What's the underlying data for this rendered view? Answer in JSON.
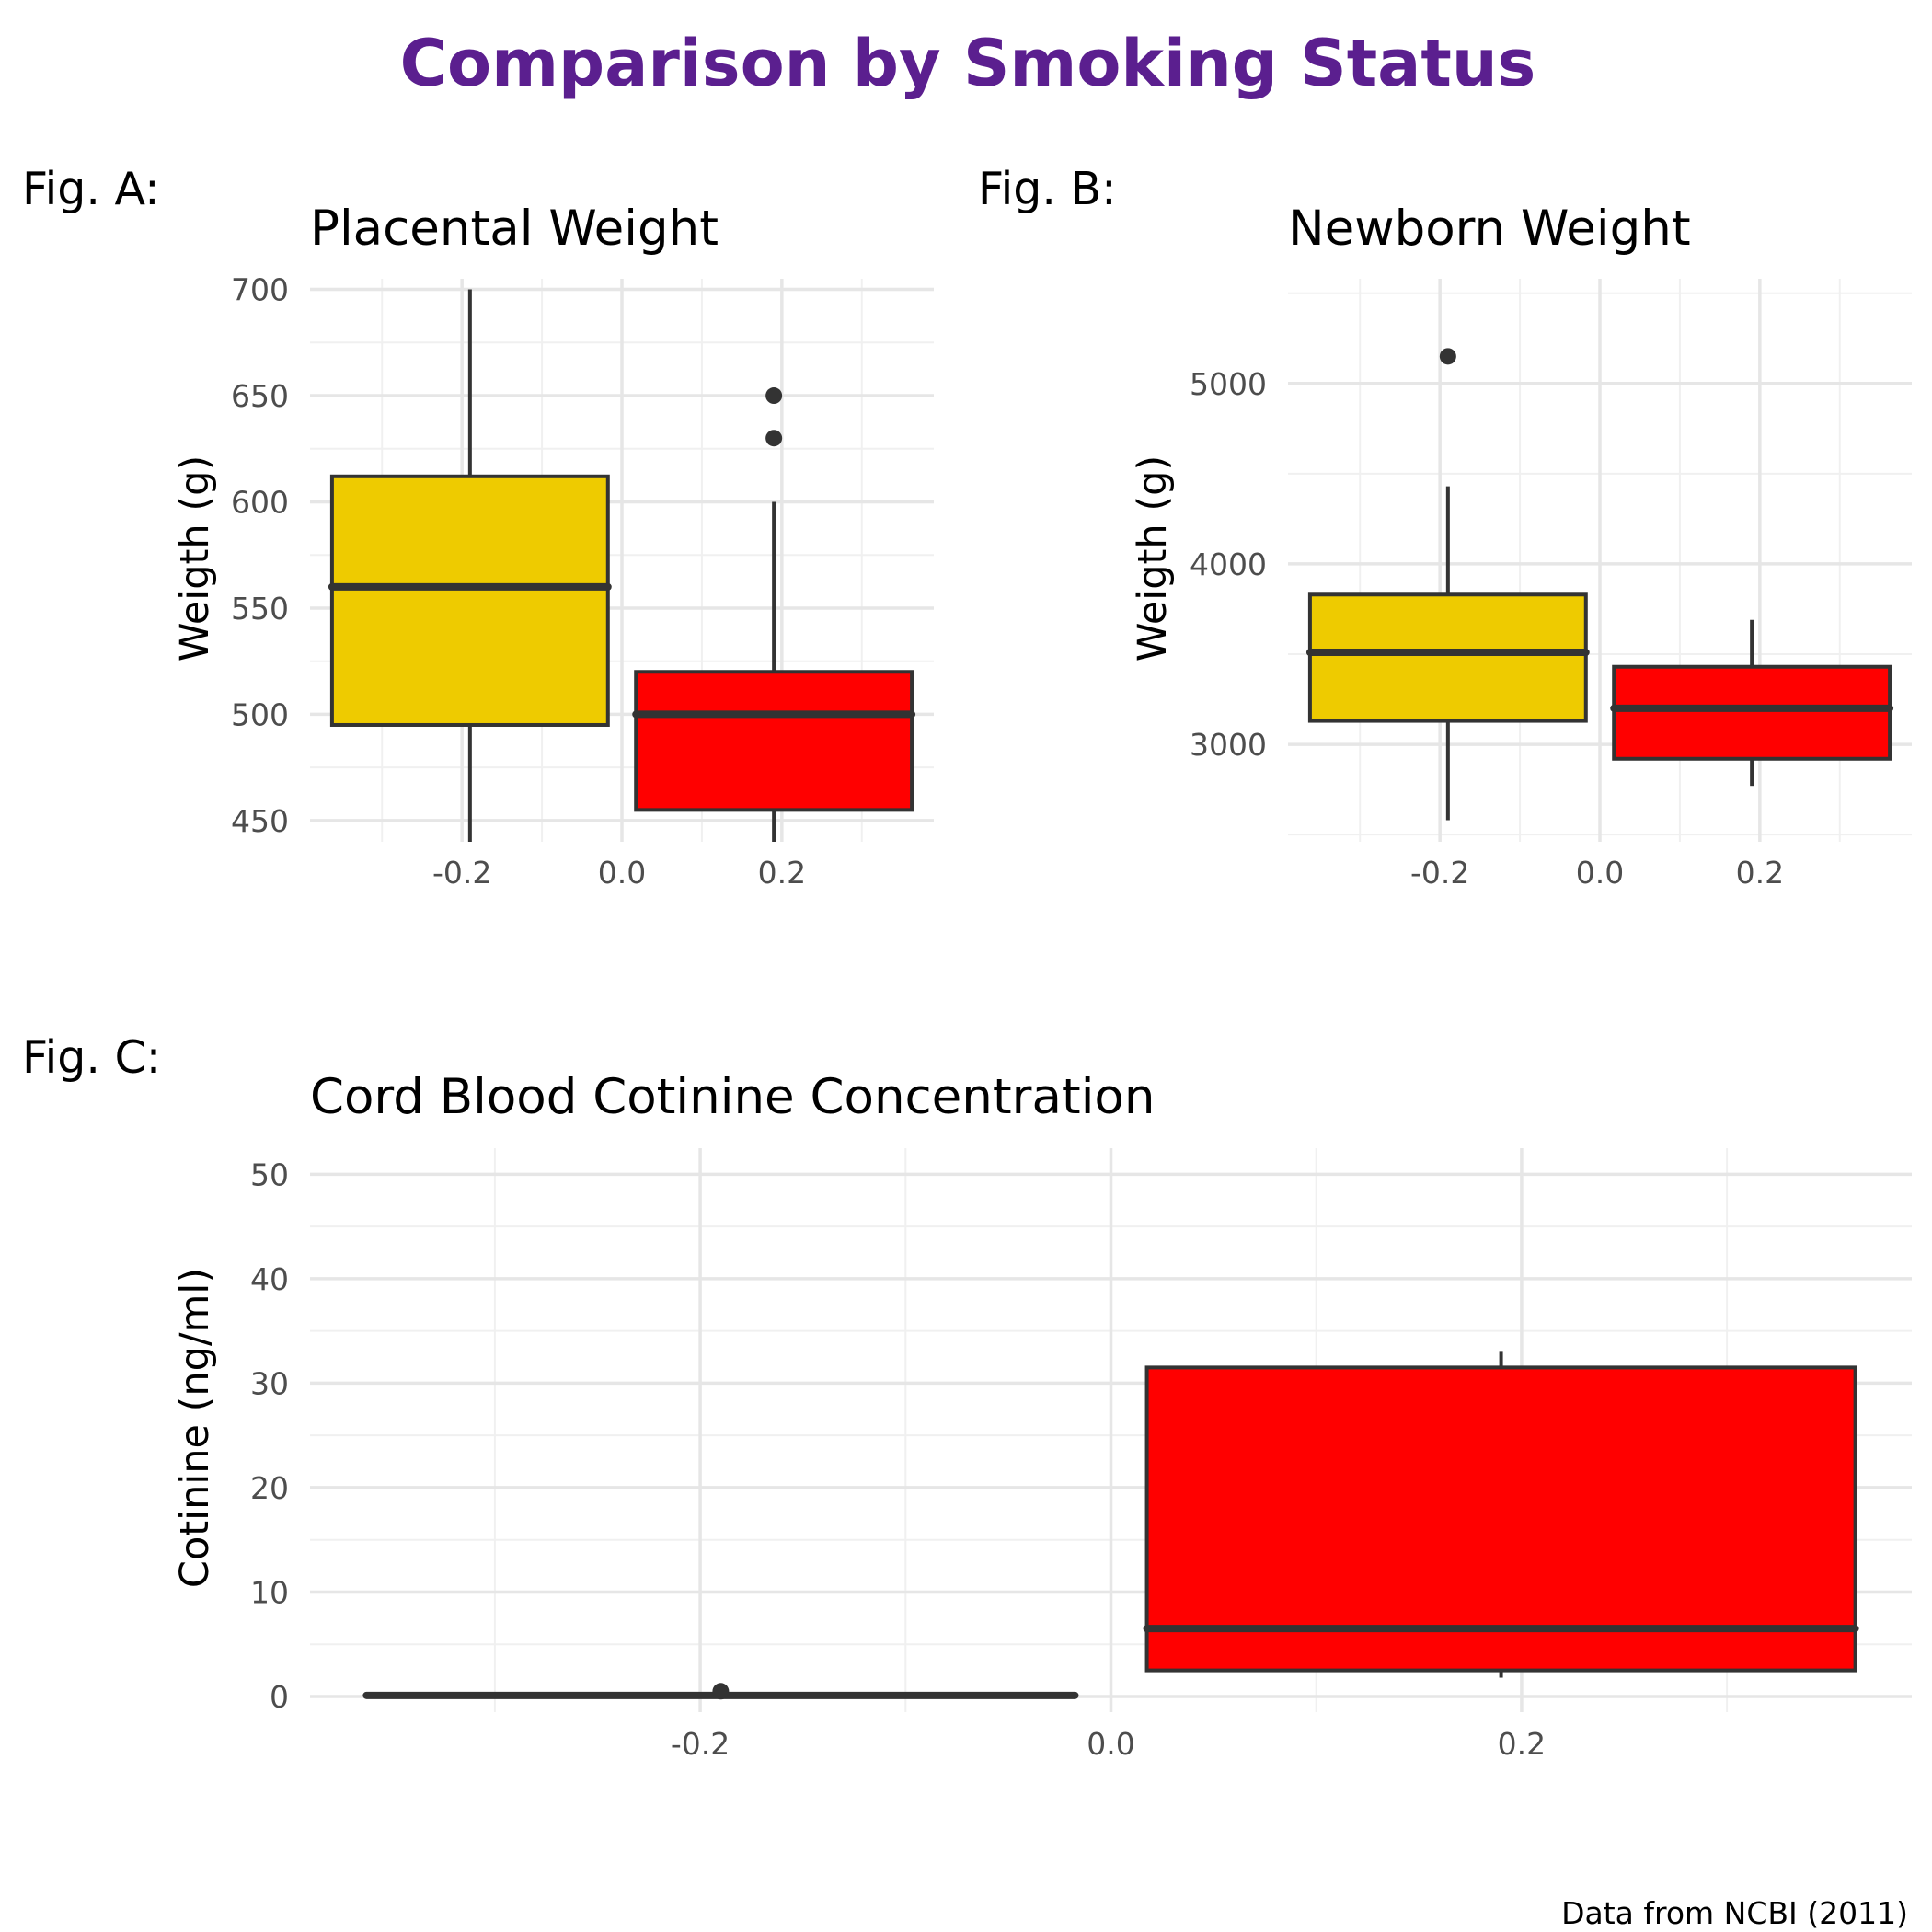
{
  "figure": {
    "title": "Comparison by Smoking Status",
    "title_color": "#5b1f8f",
    "caption": "Data from NCBI (2011)"
  },
  "colors": {
    "nonsmoker_fill": "#eecb00",
    "smoker_fill": "#ff0000",
    "outline": "#333333",
    "grid_major": "#e6e6e6",
    "grid_minor": "#f0f0f0",
    "tick_text": "#4d4d4d"
  },
  "chart_data": [
    {
      "id": "A",
      "tag": "Fig. A:",
      "type": "box",
      "title": "Placental Weight",
      "ylabel": "Weigth (g)",
      "xlabel": "",
      "xlim": [
        -0.39,
        0.39
      ],
      "ylim": [
        440,
        705
      ],
      "x_ticks": [
        -0.2,
        0.0,
        0.2
      ],
      "x_tick_labels": [
        "-0.2",
        "0.0",
        "0.2"
      ],
      "y_ticks": [
        450,
        500,
        550,
        600,
        650,
        700
      ],
      "y_tick_labels": [
        "450",
        "500",
        "550",
        "600",
        "650",
        "700"
      ],
      "grid": true,
      "boxes": [
        {
          "fill_key": "nonsmoker_fill",
          "x_min": -0.3625,
          "x_max": -0.0175,
          "whisker_low": 438,
          "q1": 495,
          "median": 560,
          "q3": 612,
          "whisker_high": 700,
          "outliers": []
        },
        {
          "fill_key": "smoker_fill",
          "x_min": 0.0175,
          "x_max": 0.3625,
          "whisker_low": 438,
          "q1": 455,
          "median": 500,
          "q3": 520,
          "whisker_high": 600,
          "outliers": [
            650,
            630
          ]
        }
      ]
    },
    {
      "id": "B",
      "tag": "Fig. B:",
      "type": "box",
      "title": "Newborn Weight",
      "ylabel": "Weigth (g)",
      "xlabel": "",
      "xlim": [
        -0.39,
        0.39
      ],
      "ylim": [
        2460,
        5580
      ],
      "x_ticks": [
        -0.2,
        0.0,
        0.2
      ],
      "x_tick_labels": [
        "-0.2",
        "0.0",
        "0.2"
      ],
      "y_ticks": [
        3000,
        4000,
        5000
      ],
      "y_tick_labels": [
        "3000",
        "4000",
        "5000"
      ],
      "grid": true,
      "boxes": [
        {
          "fill_key": "nonsmoker_fill",
          "x_min": -0.3625,
          "x_max": -0.0175,
          "whisker_low": 2580,
          "q1": 3130,
          "median": 3510,
          "q3": 3830,
          "whisker_high": 4430,
          "outliers": [
            5150
          ]
        },
        {
          "fill_key": "smoker_fill",
          "x_min": 0.0175,
          "x_max": 0.3625,
          "whisker_low": 2770,
          "q1": 2920,
          "median": 3200,
          "q3": 3430,
          "whisker_high": 3690,
          "outliers": []
        }
      ]
    },
    {
      "id": "C",
      "tag": "Fig. C:",
      "type": "box",
      "title": "Cord Blood Cotinine Concentration",
      "ylabel": "Cotinine (ng/ml)",
      "xlabel": "",
      "xlim": [
        -0.39,
        0.39
      ],
      "ylim": [
        -1.5,
        52.5
      ],
      "x_ticks": [
        -0.2,
        0.0,
        0.2
      ],
      "x_tick_labels": [
        "-0.2",
        "0.0",
        "0.2"
      ],
      "y_ticks": [
        0,
        10,
        20,
        30,
        40,
        50
      ],
      "y_tick_labels": [
        "0",
        "10",
        "20",
        "30",
        "40",
        "50"
      ],
      "grid": true,
      "boxes": [
        {
          "fill_key": "nonsmoker_fill",
          "x_min": -0.3625,
          "x_max": -0.0175,
          "whisker_low": 0.1,
          "q1": 0.1,
          "median": 0.1,
          "q3": 0.1,
          "whisker_high": 0.1,
          "outliers": [
            0.5
          ]
        },
        {
          "fill_key": "smoker_fill",
          "x_min": 0.0175,
          "x_max": 0.3625,
          "whisker_low": 1.8,
          "q1": 2.5,
          "median": 6.5,
          "q3": 31.5,
          "whisker_high": 33.0,
          "outliers": []
        }
      ]
    }
  ]
}
